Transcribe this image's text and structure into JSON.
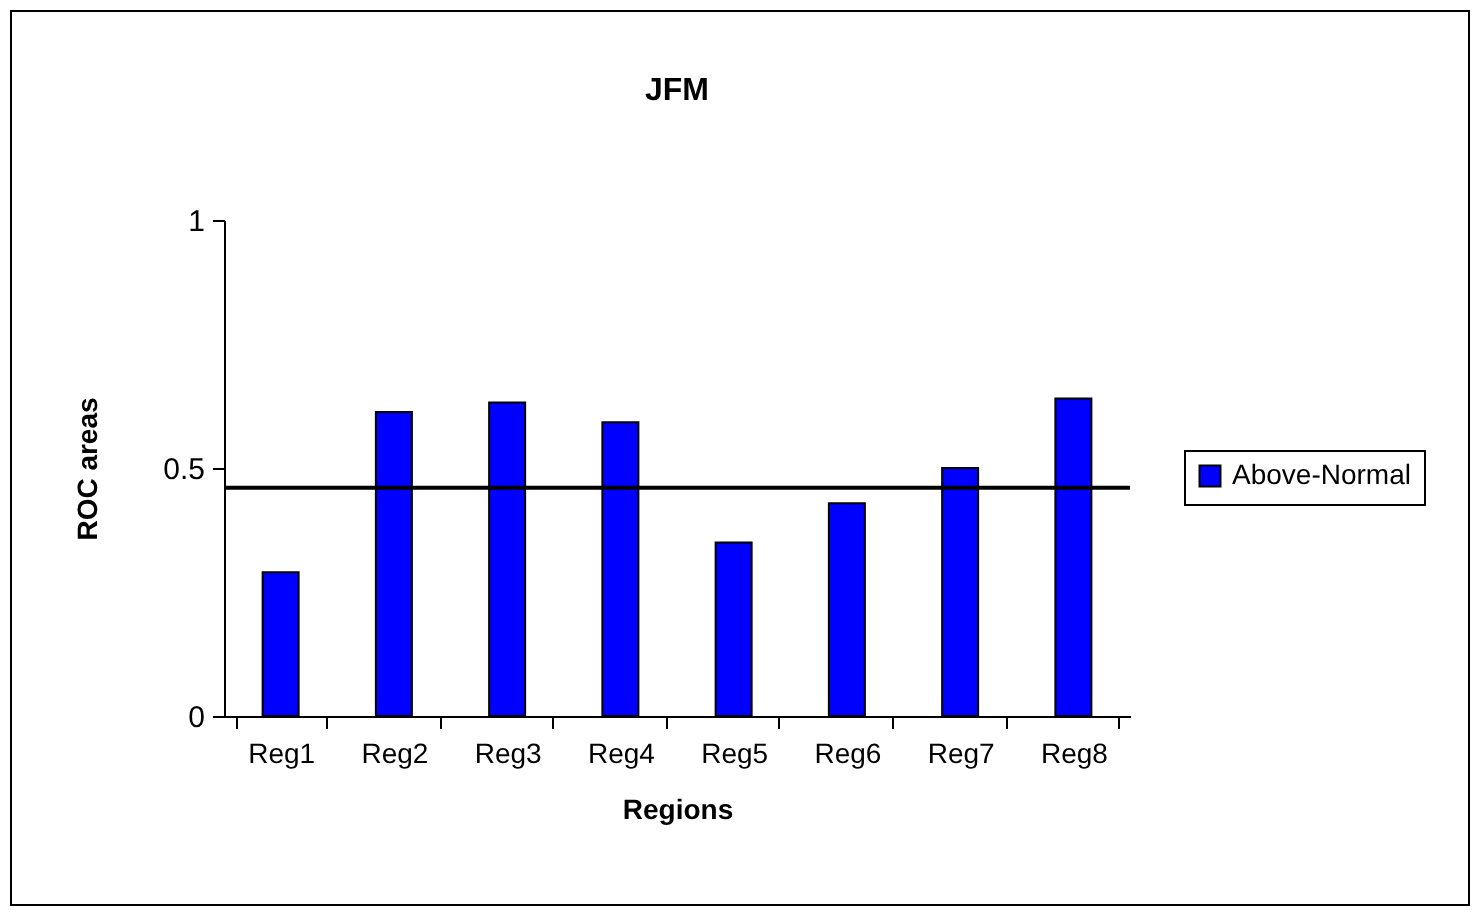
{
  "chart_data": {
    "type": "bar",
    "title": "JFM",
    "xlabel": "Regions",
    "ylabel": "ROC areas",
    "categories": [
      "Reg1",
      "Reg2",
      "Reg3",
      "Reg4",
      "Reg5",
      "Reg6",
      "Reg7",
      "Reg8"
    ],
    "series": [
      {
        "name": "Above-Normal",
        "color": "#0000ff",
        "values": [
          0.29,
          0.613,
          0.632,
          0.592,
          0.35,
          0.429,
          0.5,
          0.64
        ]
      }
    ],
    "ylim": [
      0,
      1
    ],
    "yticks": [
      0,
      0.5,
      1
    ],
    "ref_lines": [
      {
        "axis": "y",
        "value": 0.46,
        "color": "#000000"
      }
    ],
    "legend": "right",
    "grid": false
  }
}
